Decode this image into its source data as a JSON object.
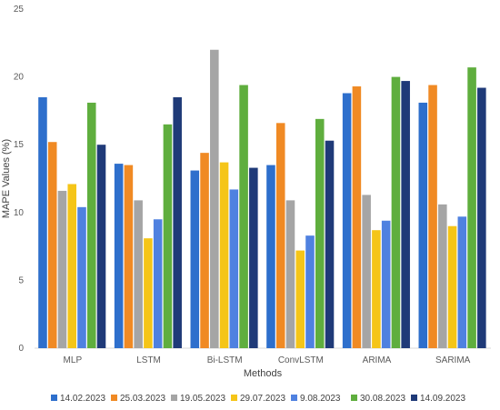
{
  "chart_data": {
    "type": "bar",
    "xlabel": "Methods",
    "ylabel": "MAPE Values (%)",
    "ylim": [
      0,
      25
    ],
    "yticks": [
      0,
      5,
      10,
      15,
      20,
      25
    ],
    "grid": false,
    "legend_position": "bottom",
    "categories": [
      "MLP",
      "LSTM",
      "Bi-LSTM",
      "ConvLSTM",
      "ARIMA",
      "SARIMA"
    ],
    "series": [
      {
        "name": "14.02.2023",
        "color": "#2E6FCC",
        "values": [
          18.5,
          13.6,
          13.1,
          13.5,
          18.8,
          18.1
        ]
      },
      {
        "name": "25.03.2023",
        "color": "#F08A24",
        "values": [
          15.2,
          13.5,
          14.4,
          16.6,
          19.3,
          19.4
        ]
      },
      {
        "name": "19.05.2023",
        "color": "#A5A5A5",
        "values": [
          11.6,
          10.9,
          22.0,
          10.9,
          11.3,
          10.6
        ]
      },
      {
        "name": "29.07.2023",
        "color": "#F5C518",
        "values": [
          12.1,
          8.1,
          13.7,
          7.2,
          8.7,
          9.0
        ]
      },
      {
        "name": "9.08.2023",
        "color": "#4F81E0",
        "values": [
          10.4,
          9.5,
          11.7,
          8.3,
          9.4,
          9.7
        ]
      },
      {
        "name": "30.08.2023",
        "color": "#5FAE3E",
        "values": [
          18.1,
          16.5,
          19.4,
          16.9,
          20.0,
          20.7
        ]
      },
      {
        "name": "14.09.2023",
        "color": "#1F3A78",
        "values": [
          15.0,
          18.5,
          13.3,
          15.3,
          19.7,
          19.2
        ]
      }
    ]
  }
}
